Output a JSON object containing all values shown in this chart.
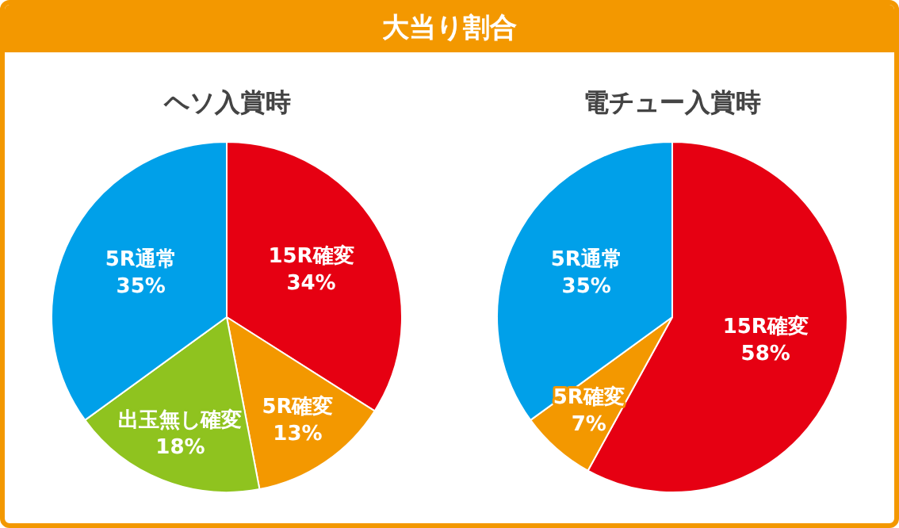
{
  "chart_data": [
    {
      "type": "pie",
      "title": "大当り割合",
      "subtitle": "ヘソ入賞時",
      "categories": [
        "15R確変",
        "5R確変",
        "出玉無し確変",
        "5R通常"
      ],
      "values": [
        34,
        13,
        18,
        35
      ],
      "colors": [
        "#e60012",
        "#f39800",
        "#8fc31f",
        "#00a0e9"
      ],
      "value_labels": [
        "34%",
        "13%",
        "18%",
        "35%"
      ],
      "legend": false
    },
    {
      "type": "pie",
      "subtitle": "電チュー入賞時",
      "categories": [
        "15R確変",
        "5R確変",
        "5R通常"
      ],
      "values": [
        58,
        7,
        35
      ],
      "colors": [
        "#e60012",
        "#f39800",
        "#00a0e9"
      ],
      "value_labels": [
        "58%",
        "7%",
        "35%"
      ],
      "legend": false
    }
  ]
}
